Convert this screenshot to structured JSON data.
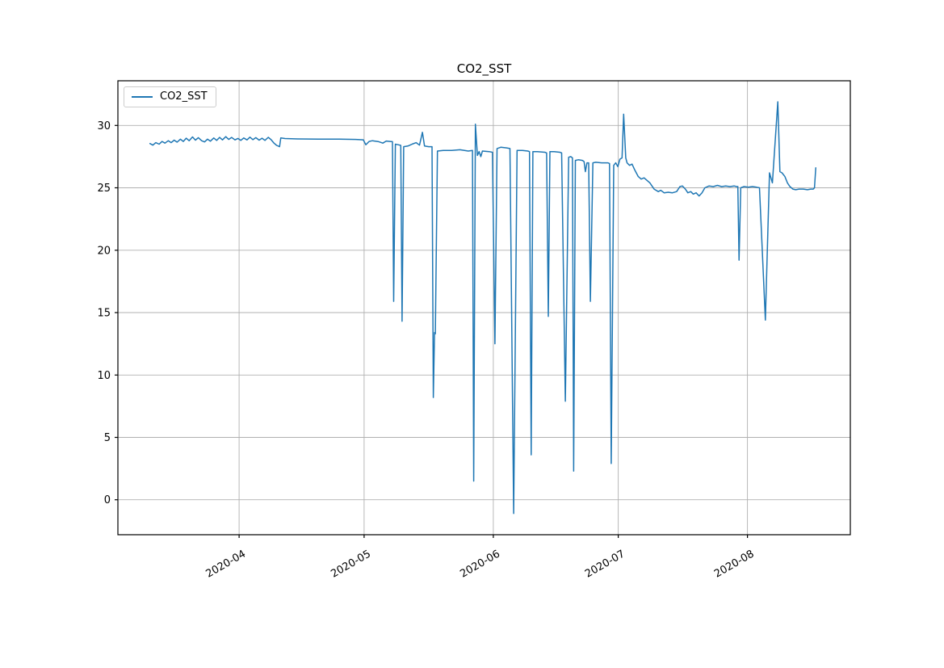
{
  "chart_data": {
    "type": "line",
    "title": "CO2_SST",
    "legend": {
      "entries": [
        "CO2_SST"
      ],
      "position": "upper left"
    },
    "grid": true,
    "colors": {
      "line": "#1f77b4",
      "grid": "#b0b0b0",
      "spine": "#000000",
      "text": "#000000"
    },
    "x_unit": "days since 2020-03-01",
    "xlim_days": [
      1.9,
      177.7
    ],
    "ylim": [
      -2.8,
      33.58
    ],
    "yticks": [
      0,
      5,
      10,
      15,
      20,
      25,
      30
    ],
    "xticks": [
      {
        "label": "2020-04",
        "day": 31
      },
      {
        "label": "2020-05",
        "day": 61
      },
      {
        "label": "2020-06",
        "day": 92
      },
      {
        "label": "2020-07",
        "day": 122
      },
      {
        "label": "2020-08",
        "day": 153
      }
    ],
    "series": [
      {
        "name": "CO2_SST",
        "color": "#1f77b4",
        "points": [
          [
            9.6,
            28.55
          ],
          [
            10.3,
            28.42
          ],
          [
            11.0,
            28.62
          ],
          [
            11.8,
            28.5
          ],
          [
            12.5,
            28.72
          ],
          [
            13.2,
            28.58
          ],
          [
            14.0,
            28.78
          ],
          [
            14.7,
            28.62
          ],
          [
            15.4,
            28.82
          ],
          [
            16.1,
            28.66
          ],
          [
            16.9,
            28.9
          ],
          [
            17.6,
            28.72
          ],
          [
            18.3,
            28.98
          ],
          [
            19.0,
            28.78
          ],
          [
            19.8,
            29.08
          ],
          [
            20.5,
            28.82
          ],
          [
            21.2,
            29.02
          ],
          [
            22.0,
            28.78
          ],
          [
            22.7,
            28.68
          ],
          [
            23.4,
            28.9
          ],
          [
            24.1,
            28.74
          ],
          [
            24.9,
            29.0
          ],
          [
            25.6,
            28.8
          ],
          [
            26.3,
            29.04
          ],
          [
            27.0,
            28.84
          ],
          [
            27.8,
            29.1
          ],
          [
            28.5,
            28.88
          ],
          [
            29.2,
            29.04
          ],
          [
            30.0,
            28.84
          ],
          [
            30.7,
            28.96
          ],
          [
            31.4,
            28.8
          ],
          [
            32.1,
            29.0
          ],
          [
            32.9,
            28.84
          ],
          [
            33.6,
            29.06
          ],
          [
            34.3,
            28.86
          ],
          [
            35.0,
            29.02
          ],
          [
            35.8,
            28.82
          ],
          [
            36.5,
            28.98
          ],
          [
            37.2,
            28.8
          ],
          [
            38.0,
            29.05
          ],
          [
            38.7,
            28.85
          ],
          [
            39.3,
            28.6
          ],
          [
            40.0,
            28.4
          ],
          [
            40.7,
            28.3
          ],
          [
            41.0,
            29.0
          ],
          [
            42.0,
            28.95
          ],
          [
            45.0,
            28.92
          ],
          [
            50.0,
            28.9
          ],
          [
            55.0,
            28.9
          ],
          [
            59.0,
            28.88
          ],
          [
            60.8,
            28.85
          ],
          [
            61.4,
            28.45
          ],
          [
            62.2,
            28.72
          ],
          [
            63.0,
            28.78
          ],
          [
            64.5,
            28.7
          ],
          [
            65.5,
            28.58
          ],
          [
            66.3,
            28.75
          ],
          [
            67.2,
            28.72
          ],
          [
            67.8,
            28.7
          ],
          [
            68.1,
            15.9
          ],
          [
            68.5,
            28.5
          ],
          [
            69.2,
            28.45
          ],
          [
            69.8,
            28.4
          ],
          [
            70.1,
            14.3
          ],
          [
            70.5,
            28.3
          ],
          [
            71.5,
            28.35
          ],
          [
            72.5,
            28.5
          ],
          [
            73.5,
            28.62
          ],
          [
            74.3,
            28.42
          ],
          [
            75.0,
            29.45
          ],
          [
            75.5,
            28.35
          ],
          [
            76.5,
            28.3
          ],
          [
            77.3,
            28.3
          ],
          [
            77.6,
            8.2
          ],
          [
            77.9,
            13.4
          ],
          [
            78.1,
            13.3
          ],
          [
            78.6,
            27.95
          ],
          [
            80.0,
            28.0
          ],
          [
            82.0,
            28.0
          ],
          [
            84.0,
            28.05
          ],
          [
            86.0,
            27.95
          ],
          [
            87.0,
            28.0
          ],
          [
            87.3,
            1.5
          ],
          [
            87.7,
            30.1
          ],
          [
            88.2,
            27.6
          ],
          [
            88.6,
            27.9
          ],
          [
            89.0,
            27.5
          ],
          [
            89.4,
            27.95
          ],
          [
            91.0,
            27.9
          ],
          [
            91.8,
            27.85
          ],
          [
            92.4,
            12.5
          ],
          [
            92.9,
            28.15
          ],
          [
            93.8,
            28.25
          ],
          [
            95.2,
            28.2
          ],
          [
            96.0,
            28.15
          ],
          [
            96.9,
            -1.1
          ],
          [
            97.7,
            28.0
          ],
          [
            99.0,
            28.0
          ],
          [
            100.3,
            27.95
          ],
          [
            100.7,
            27.9
          ],
          [
            101.1,
            3.6
          ],
          [
            101.5,
            27.9
          ],
          [
            102.6,
            27.9
          ],
          [
            104.4,
            27.85
          ],
          [
            104.8,
            27.8
          ],
          [
            105.2,
            14.7
          ],
          [
            105.6,
            27.9
          ],
          [
            106.6,
            27.9
          ],
          [
            108.0,
            27.85
          ],
          [
            108.4,
            27.8
          ],
          [
            109.3,
            7.9
          ],
          [
            110.1,
            27.45
          ],
          [
            110.6,
            27.5
          ],
          [
            111.0,
            27.4
          ],
          [
            111.3,
            2.3
          ],
          [
            111.7,
            27.2
          ],
          [
            112.4,
            27.25
          ],
          [
            113.4,
            27.2
          ],
          [
            113.8,
            27.1
          ],
          [
            114.1,
            26.3
          ],
          [
            114.5,
            27.0
          ],
          [
            114.9,
            27.0
          ],
          [
            115.3,
            15.9
          ],
          [
            115.9,
            27.0
          ],
          [
            116.6,
            27.05
          ],
          [
            118.0,
            27.0
          ],
          [
            119.5,
            27.0
          ],
          [
            119.9,
            26.95
          ],
          [
            120.3,
            2.9
          ],
          [
            120.9,
            26.8
          ],
          [
            121.4,
            27.0
          ],
          [
            121.9,
            26.7
          ],
          [
            122.4,
            27.3
          ],
          [
            122.9,
            27.4
          ],
          [
            123.3,
            30.9
          ],
          [
            123.8,
            27.4
          ],
          [
            124.1,
            27.0
          ],
          [
            124.7,
            26.8
          ],
          [
            125.3,
            26.9
          ],
          [
            126.0,
            26.4
          ],
          [
            126.8,
            25.9
          ],
          [
            127.5,
            25.7
          ],
          [
            128.2,
            25.8
          ],
          [
            128.9,
            25.6
          ],
          [
            129.6,
            25.4
          ],
          [
            130.6,
            24.9
          ],
          [
            131.6,
            24.7
          ],
          [
            132.2,
            24.8
          ],
          [
            133.0,
            24.6
          ],
          [
            134.0,
            24.65
          ],
          [
            135.0,
            24.6
          ],
          [
            136.0,
            24.7
          ],
          [
            136.8,
            25.1
          ],
          [
            137.4,
            25.15
          ],
          [
            138.1,
            24.9
          ],
          [
            138.7,
            24.6
          ],
          [
            139.4,
            24.7
          ],
          [
            140.0,
            24.5
          ],
          [
            140.7,
            24.6
          ],
          [
            141.4,
            24.35
          ],
          [
            142.1,
            24.6
          ],
          [
            142.8,
            25.0
          ],
          [
            143.8,
            25.15
          ],
          [
            144.8,
            25.1
          ],
          [
            145.8,
            25.2
          ],
          [
            146.8,
            25.1
          ],
          [
            147.8,
            25.15
          ],
          [
            148.8,
            25.1
          ],
          [
            149.8,
            25.15
          ],
          [
            150.4,
            25.1
          ],
          [
            150.7,
            25.1
          ],
          [
            151.0,
            19.2
          ],
          [
            151.4,
            25.0
          ],
          [
            152.2,
            25.1
          ],
          [
            153.2,
            25.05
          ],
          [
            154.2,
            25.1
          ],
          [
            155.2,
            25.05
          ],
          [
            155.9,
            25.0
          ],
          [
            157.3,
            14.4
          ],
          [
            158.3,
            26.2
          ],
          [
            159.0,
            25.4
          ],
          [
            160.3,
            31.9
          ],
          [
            160.8,
            26.3
          ],
          [
            161.3,
            26.2
          ],
          [
            162.0,
            25.9
          ],
          [
            162.6,
            25.4
          ],
          [
            163.2,
            25.1
          ],
          [
            163.9,
            24.9
          ],
          [
            164.6,
            24.85
          ],
          [
            165.4,
            24.9
          ],
          [
            166.4,
            24.9
          ],
          [
            167.4,
            24.85
          ],
          [
            168.2,
            24.9
          ],
          [
            168.8,
            24.9
          ],
          [
            169.1,
            25.0
          ],
          [
            169.4,
            26.6
          ]
        ]
      }
    ]
  }
}
